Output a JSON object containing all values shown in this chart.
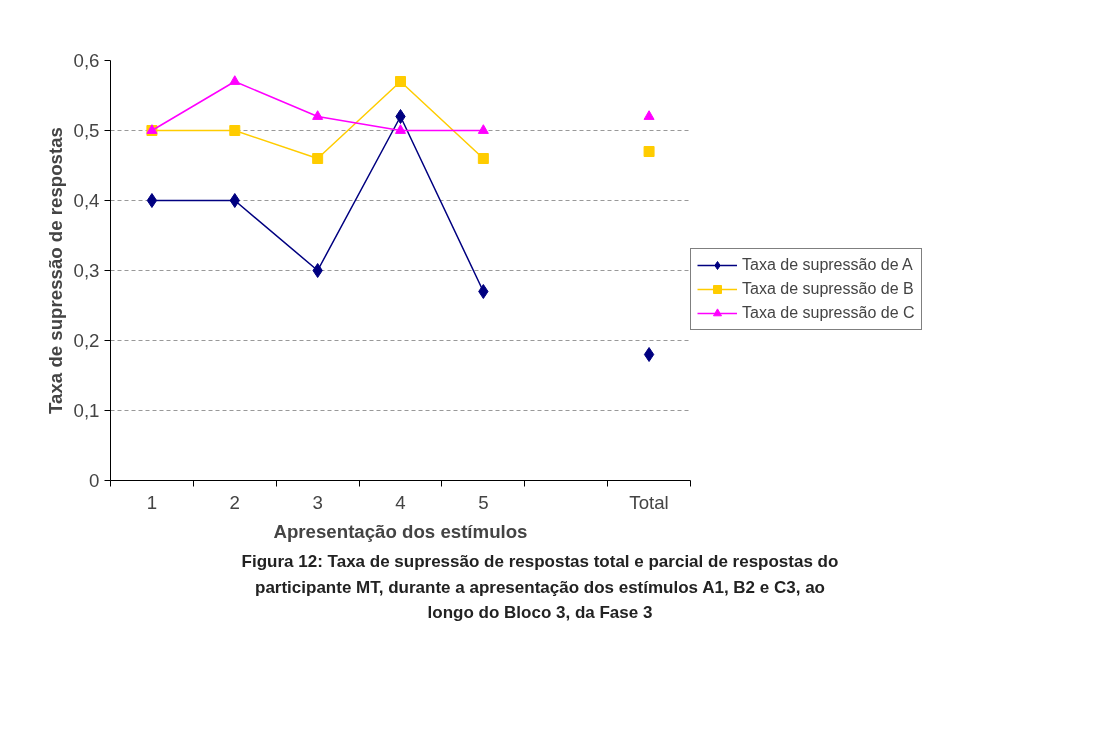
{
  "chart_data": {
    "type": "line",
    "xlabel": "Apresentação dos estímulos",
    "ylabel": "Taxa de supressão de respostas",
    "categories": [
      "1",
      "2",
      "3",
      "4",
      "5",
      null,
      "Total"
    ],
    "ylim": [
      0,
      0.6
    ],
    "yticks": [
      {
        "value": 0,
        "label": "0"
      },
      {
        "value": 0.1,
        "label": "0,1"
      },
      {
        "value": 0.2,
        "label": "0,2"
      },
      {
        "value": 0.3,
        "label": "0,3"
      },
      {
        "value": 0.4,
        "label": "0,4"
      },
      {
        "value": 0.5,
        "label": "0,5"
      },
      {
        "value": 0.6,
        "label": "0,6"
      }
    ],
    "grid": "y",
    "legend": "right",
    "series": [
      {
        "name": "Taxa de supressão de A",
        "color": "#000080",
        "marker": "diamond",
        "values": [
          0.4,
          0.4,
          0.3,
          0.52,
          0.27,
          null,
          0.18
        ]
      },
      {
        "name": "Taxa de supressão de B",
        "color": "#ffcc00",
        "marker": "square",
        "values": [
          0.5,
          0.5,
          0.46,
          0.57,
          0.46,
          null,
          0.47
        ]
      },
      {
        "name": "Taxa de supressão de C",
        "color": "#ff00ff",
        "marker": "triangle",
        "values": [
          0.5,
          0.57,
          0.52,
          0.5,
          0.5,
          null,
          0.52
        ]
      }
    ],
    "annotations": [
      "Figura 12: Taxa de supressão de respostas total e parcial de respostas do participante MT, durante a apresentação dos estímulos A1, B2 e C3, ao longo do Bloco 3, da Fase 3"
    ]
  }
}
